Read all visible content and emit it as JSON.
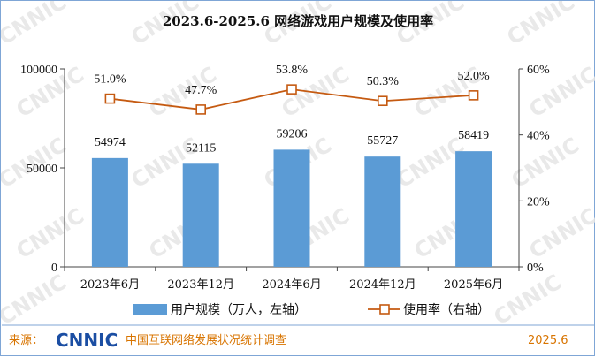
{
  "chart_data": {
    "type": "bar",
    "title": "2023.6-2025.6 网络游戏用户规模及使用率",
    "categories": [
      "2023年6月",
      "2023年12月",
      "2024年6月",
      "2024年12月",
      "2025年6月"
    ],
    "series": [
      {
        "name": "用户规模（万人，左轴）",
        "type": "bar",
        "axis": "left",
        "values": [
          54974,
          52115,
          59206,
          55727,
          58419
        ]
      },
      {
        "name": "使用率（右轴）",
        "type": "line",
        "axis": "right",
        "values": [
          51.0,
          47.7,
          53.8,
          50.3,
          52.0
        ]
      }
    ],
    "y_left": {
      "lim": [
        0,
        100000
      ],
      "ticks": [
        0,
        50000,
        100000
      ]
    },
    "y_right": {
      "lim": [
        0,
        60
      ],
      "ticks": [
        "0%",
        "20%",
        "40%",
        "60%"
      ],
      "tick_values": [
        0,
        20,
        40,
        60
      ]
    },
    "bar_labels": [
      "54974",
      "52115",
      "59206",
      "55727",
      "58419"
    ],
    "line_labels": [
      "51.0%",
      "47.7%",
      "53.8%",
      "50.3%",
      "52.0%"
    ],
    "legend": [
      "用户规模（万人，左轴）",
      "使用率（右轴）"
    ],
    "legend_position": "bottom",
    "colors": {
      "bar": "#5b9bd5",
      "line": "#c55a11",
      "marker_fill": "#ffffff"
    }
  },
  "footer": {
    "source_label": "来源：",
    "logo_text": "CNNIC",
    "org_name": "中国互联网络发展状况统计调查",
    "date": "2025.6"
  },
  "watermark": "CNNIC"
}
